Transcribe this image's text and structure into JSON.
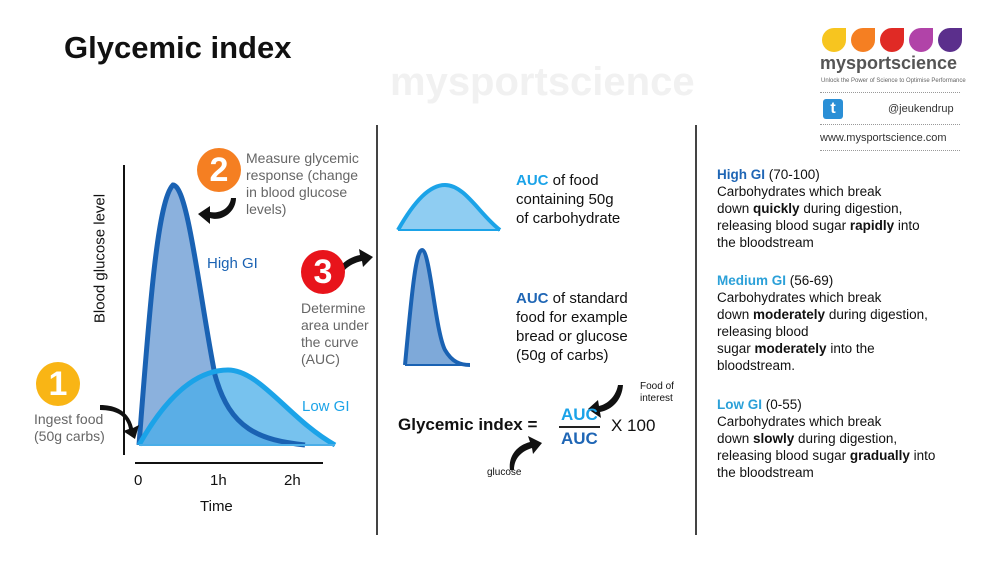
{
  "title": "Glycemic index",
  "logo": {
    "brand": "mysportscience",
    "tagline": "Unlock the Power of Science to Optimise Performance",
    "twitter_handle": "@jeukendrup",
    "website": "www.mysportscience.com",
    "drop_colors": [
      "#f7c51f",
      "#f57f22",
      "#e02a25",
      "#b143a8",
      "#5b2f8c"
    ]
  },
  "watermark": "mysportscience",
  "graph": {
    "y_label": "Blood glucose level",
    "x_label": "Time",
    "x_ticks": [
      "0",
      "1h",
      "2h"
    ],
    "high_label": "High GI",
    "low_label": "Low GI",
    "colors": {
      "high": "#1a62b3",
      "low": "#1ba3e8"
    }
  },
  "steps": [
    {
      "number": "1",
      "text_lines": [
        "Ingest food",
        "(50g carbs)"
      ],
      "color": "#f9b515"
    },
    {
      "number": "2",
      "text_lines": [
        "Measure glycemic",
        "response (change",
        "in blood glucose",
        "levels)"
      ],
      "color": "#f57f22"
    },
    {
      "number": "3",
      "text_lines": [
        "Determine",
        "area under",
        "the curve",
        "(AUC)"
      ],
      "color": "#e8141b"
    }
  ],
  "middle": {
    "food_auc": {
      "auc": "AUC",
      "rest_lines": [
        " of food",
        "containing 50g",
        "of carbohydrate"
      ]
    },
    "standard_auc": {
      "auc": "AUC",
      "rest_lines": [
        " of standard",
        "food for example",
        "bread or glucose",
        "(50g of carbs)"
      ]
    },
    "formula": {
      "label": "Glycemic index =",
      "numerator": "AUC",
      "denominator": "AUC",
      "multiplier": "X 100",
      "top_note_lines": [
        "Food of",
        "interest"
      ],
      "bottom_note": "glucose"
    }
  },
  "categories": [
    {
      "name": "High GI",
      "range": "(70-100)",
      "parts": [
        "Carbohydrates which break",
        "down ",
        "quickly",
        " during digestion,",
        "releasing blood sugar ",
        "rapidly",
        " into",
        "the bloodstream"
      ]
    },
    {
      "name": "Medium GI",
      "range": "(56-69)",
      "parts": [
        "Carbohydrates which break",
        "down ",
        "moderately",
        " during digestion,",
        "releasing blood",
        "sugar ",
        "moderately",
        " into the",
        "bloodstream."
      ]
    },
    {
      "name": "Low GI",
      "range": "(0-55)",
      "parts": [
        "Carbohydrates which break",
        "down ",
        "slowly",
        " during digestion,",
        "releasing blood sugar ",
        "gradually",
        " into",
        "the bloodstream"
      ]
    }
  ]
}
